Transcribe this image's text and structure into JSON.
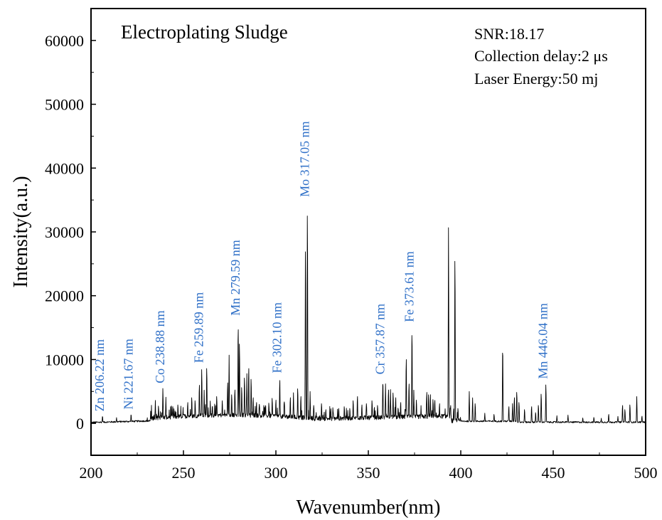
{
  "chart_data": {
    "type": "line",
    "title": "Electroplating Sludge",
    "xlabel": "Wavenumber(nm)",
    "ylabel": "Intensity(a.u.)",
    "xlim": [
      200,
      500
    ],
    "ylim": [
      -5000,
      65000
    ],
    "x_ticks": [
      200,
      250,
      300,
      350,
      400,
      450,
      500
    ],
    "y_ticks": [
      0,
      10000,
      20000,
      30000,
      40000,
      50000,
      60000
    ],
    "grid": false,
    "legend": "none",
    "line_color": "#000000",
    "label_color": "#2E6FC7",
    "info_lines": [
      "SNR:18.17",
      "Collection delay:2 μs",
      "Laser Energy:50 mj"
    ],
    "annotations": [
      {
        "text": "Zn 206.22 nm",
        "x": 206.22,
        "y": 1200
      },
      {
        "text": "Ni 221.67 nm",
        "x": 221.67,
        "y": 1500
      },
      {
        "text": "Co 238.88 nm",
        "x": 238.88,
        "y": 5600
      },
      {
        "text": "Fe 259.89 nm",
        "x": 259.89,
        "y": 8800
      },
      {
        "text": "Mn 279.59 nm",
        "x": 279.59,
        "y": 16200
      },
      {
        "text": "Fe 302.10 nm",
        "x": 302.1,
        "y": 7200
      },
      {
        "text": "Mo 317.05 nm",
        "x": 317.05,
        "y": 34800
      },
      {
        "text": "Cr 357.87 nm",
        "x": 357.87,
        "y": 7000
      },
      {
        "text": "Fe 373.61 nm",
        "x": 373.61,
        "y": 15200
      },
      {
        "text": "Mn 446.04 nm",
        "x": 446.04,
        "y": 6300
      }
    ],
    "peaks": [
      [
        206.22,
        1200
      ],
      [
        213.8,
        900
      ],
      [
        221.67,
        1500
      ],
      [
        234.8,
        3600
      ],
      [
        236.5,
        2900
      ],
      [
        238.88,
        5600
      ],
      [
        240.5,
        4100
      ],
      [
        244.2,
        2800
      ],
      [
        247.0,
        3100
      ],
      [
        249.8,
        2500
      ],
      [
        252.3,
        3500
      ],
      [
        254.5,
        4300
      ],
      [
        256.3,
        3800
      ],
      [
        258.6,
        6400
      ],
      [
        259.89,
        8800
      ],
      [
        261.2,
        5200
      ],
      [
        262.6,
        9200
      ],
      [
        264.5,
        3500
      ],
      [
        268.0,
        4500
      ],
      [
        271.0,
        3800
      ],
      [
        273.9,
        6800
      ],
      [
        274.7,
        10700
      ],
      [
        276.1,
        4800
      ],
      [
        277.8,
        5600
      ],
      [
        279.59,
        16200
      ],
      [
        280.3,
        13300
      ],
      [
        281.5,
        6000
      ],
      [
        283.0,
        7600
      ],
      [
        284.3,
        7800
      ],
      [
        285.3,
        9200
      ],
      [
        286.6,
        7400
      ],
      [
        287.7,
        4300
      ],
      [
        289.5,
        3500
      ],
      [
        291.0,
        3200
      ],
      [
        293.5,
        3000
      ],
      [
        296.2,
        3400
      ],
      [
        298.0,
        4200
      ],
      [
        300.0,
        3900
      ],
      [
        302.1,
        7200
      ],
      [
        304.6,
        3600
      ],
      [
        307.8,
        4300
      ],
      [
        309.5,
        4800
      ],
      [
        311.8,
        5800
      ],
      [
        313.5,
        4500
      ],
      [
        316.0,
        28800
      ],
      [
        317.05,
        34800
      ],
      [
        318.5,
        5000
      ],
      [
        320.5,
        3000
      ],
      [
        324.7,
        3300
      ],
      [
        327.0,
        2300
      ],
      [
        331.0,
        2000
      ],
      [
        334.0,
        2500
      ],
      [
        337.0,
        2800
      ],
      [
        340.0,
        2500
      ],
      [
        341.8,
        3800
      ],
      [
        344.1,
        4500
      ],
      [
        346.5,
        3100
      ],
      [
        349.0,
        3300
      ],
      [
        352.0,
        3800
      ],
      [
        355.0,
        3000
      ],
      [
        357.87,
        7000
      ],
      [
        359.3,
        6200
      ],
      [
        360.9,
        5600
      ],
      [
        362.0,
        5300
      ],
      [
        363.4,
        5100
      ],
      [
        364.8,
        4300
      ],
      [
        367.5,
        3500
      ],
      [
        370.5,
        10700
      ],
      [
        372.0,
        6600
      ],
      [
        373.61,
        15200
      ],
      [
        374.6,
        5200
      ],
      [
        376.0,
        3900
      ],
      [
        378.5,
        2800
      ],
      [
        381.6,
        5200
      ],
      [
        382.6,
        4800
      ],
      [
        383.6,
        4500
      ],
      [
        385.0,
        4000
      ],
      [
        386.0,
        3600
      ],
      [
        388.5,
        3300
      ],
      [
        393.37,
        31000
      ],
      [
        394.5,
        3000
      ],
      [
        396.85,
        27200
      ],
      [
        398.5,
        2500
      ],
      [
        404.6,
        5000
      ],
      [
        406.4,
        4000
      ],
      [
        407.8,
        3300
      ],
      [
        413.0,
        1600
      ],
      [
        418.0,
        1500
      ],
      [
        422.67,
        12600
      ],
      [
        426.0,
        2800
      ],
      [
        428.0,
        3100
      ],
      [
        429.0,
        4300
      ],
      [
        430.3,
        5200
      ],
      [
        431.5,
        3500
      ],
      [
        434.5,
        2300
      ],
      [
        438.3,
        2800
      ],
      [
        440.5,
        1800
      ],
      [
        442.0,
        3000
      ],
      [
        443.5,
        4900
      ],
      [
        446.04,
        6300
      ],
      [
        452.0,
        1200
      ],
      [
        458.0,
        1300
      ],
      [
        466.0,
        900
      ],
      [
        472.0,
        1000
      ],
      [
        476.0,
        800
      ],
      [
        480.0,
        1500
      ],
      [
        485.0,
        1100
      ],
      [
        487.5,
        3000
      ],
      [
        488.8,
        2300
      ],
      [
        491.5,
        3100
      ],
      [
        495.2,
        4200
      ],
      [
        498.0,
        1200
      ]
    ]
  }
}
